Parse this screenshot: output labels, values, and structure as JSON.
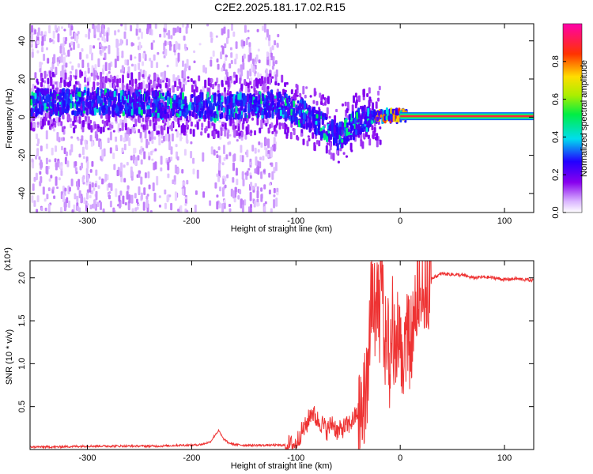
{
  "figure": {
    "title": "C2E2.2025.181.17.02.R15"
  },
  "chart_data": [
    {
      "type": "heatmap",
      "xlabel": "Height of straight line (km)",
      "ylabel": "Frequency (Hz)",
      "xlim": [
        -355,
        128
      ],
      "ylim": [
        -50,
        49
      ],
      "xticks": [
        -300,
        -200,
        -100,
        0,
        100
      ],
      "yticks": [
        -40,
        -20,
        0,
        20,
        40
      ],
      "colorbar": {
        "label": "Normalized spectral amplitude",
        "range": [
          0,
          1
        ],
        "ticks": [
          "0.0",
          "0.2",
          "0.4",
          "0.6",
          "0.8"
        ],
        "tick_values": [
          0.0,
          0.2,
          0.4,
          0.6,
          0.8
        ],
        "colormap": "rainbow (white → violet → blue → cyan → green → yellow → red → magenta)"
      },
      "description": "Broad weak scatter for heights below about -120 km, a strong band near 5–10 Hz descending toward about -15 Hz around -60 km, converging to a steady narrow line near 0 Hz above 0 km",
      "ridge": {
        "x": [
          -350,
          -300,
          -250,
          -200,
          -180,
          -150,
          -120,
          -100,
          -80,
          -60,
          -40,
          -20,
          0,
          128
        ],
        "freq": [
          8,
          8,
          7,
          6,
          5,
          6,
          7,
          3,
          -2,
          -10,
          -2,
          1,
          1,
          1
        ]
      },
      "steady_line": {
        "x_from": 0,
        "x_to": 128,
        "freq": 0.5,
        "amplitude": 0.9
      }
    },
    {
      "type": "line",
      "xlabel": "Height of straight line (km)",
      "ylabel": "SNR (10 * v/v)",
      "y_multiplier": "(x10⁴)",
      "xlim": [
        -355,
        128
      ],
      "ylim": [
        0,
        2.2
      ],
      "xticks": [
        -300,
        -200,
        -100,
        0,
        100
      ],
      "yticks": [
        0.5,
        1.0,
        1.5,
        2.0
      ],
      "ytick_labels": [
        "0.5",
        "1.0",
        "1.5",
        "2.0"
      ],
      "series": [
        {
          "color": "#ee3333",
          "x": [
            -355,
            -330,
            -300,
            -270,
            -250,
            -230,
            -210,
            -200,
            -190,
            -182,
            -177,
            -174,
            -170,
            -165,
            -160,
            -150,
            -140,
            -130,
            -120,
            -110,
            -100,
            -96,
            -90,
            -85,
            -80,
            -75,
            -70,
            -65,
            -60,
            -55,
            -50,
            -45,
            -40,
            -35,
            -31,
            -29,
            -27,
            -25,
            -22,
            -20,
            -18,
            -15,
            -12,
            -10,
            -8,
            -5,
            -2,
            0,
            5,
            10,
            15,
            20,
            25,
            30,
            35,
            40,
            50,
            60,
            70,
            80,
            90,
            100,
            110,
            120,
            128
          ],
          "y": [
            0.03,
            0.03,
            0.04,
            0.04,
            0.04,
            0.04,
            0.05,
            0.05,
            0.06,
            0.09,
            0.18,
            0.22,
            0.13,
            0.08,
            0.06,
            0.05,
            0.05,
            0.05,
            0.05,
            0.05,
            0.06,
            0.18,
            0.28,
            0.45,
            0.35,
            0.3,
            0.22,
            0.32,
            0.2,
            0.25,
            0.28,
            0.35,
            0.45,
            0.6,
            0.9,
            1.5,
            2.0,
            1.6,
            1.8,
            1.3,
            2.2,
            1.1,
            1.6,
            0.9,
            1.5,
            1.2,
            1.4,
            1.0,
            1.2,
            1.3,
            1.6,
            1.8,
            1.9,
            2.0,
            2.02,
            2.05,
            2.04,
            2.03,
            2.0,
            2.01,
            2.0,
            1.98,
            1.99,
            1.98,
            1.97
          ]
        }
      ]
    }
  ]
}
